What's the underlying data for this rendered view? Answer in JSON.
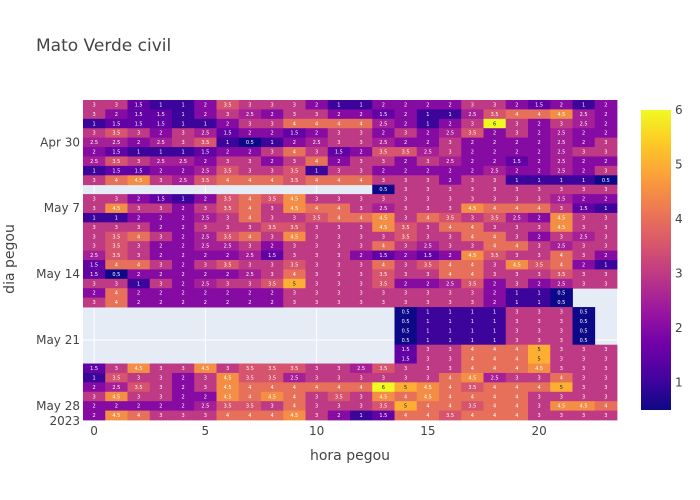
{
  "chart_data": {
    "type": "heatmap",
    "title": "Mato Verde civil",
    "xlabel": "hora pegou",
    "ylabel": "dia pegou",
    "x": [
      0,
      1,
      2,
      3,
      4,
      5,
      6,
      7,
      8,
      9,
      10,
      11,
      12,
      13,
      14,
      15,
      16,
      17,
      18,
      19,
      20,
      21,
      22,
      23
    ],
    "xlim": [
      -0.5,
      23.5
    ],
    "x_ticks": [
      0,
      5,
      10,
      15,
      20
    ],
    "x_tick_labels": [
      "0",
      "5",
      "10",
      "15",
      "20"
    ],
    "y_rows_start": "Apr 26",
    "y_tick_labels": [
      "Apr 30",
      "May 7",
      "May 14",
      "May 21",
      "May 28",
      "2023"
    ],
    "y_tick_rows": [
      4,
      11,
      18,
      25,
      32
    ],
    "colorscale": [
      "#0d0887",
      "#46039f",
      "#7201a8",
      "#9c179e",
      "#bd3786",
      "#d8576b",
      "#ed7953",
      "#fb9f3a",
      "#fdca26",
      "#f0f921"
    ],
    "zlim": [
      0.5,
      6
    ],
    "colorbar_ticks": [
      1,
      2,
      3,
      4,
      5,
      6
    ],
    "colorbar_tick_labels": [
      "1",
      "2",
      "3",
      "4",
      "5",
      "6"
    ],
    "grid": true,
    "z_rows": [
      "3 3 1.5 1 1 2 3.5 3 3 3 2 1 1 2 2 2 2 3 3 2 1.5 2 1 2",
      "3 2 1.5 1.5 1 2 3 2.5 2 3 3 2 2 1.5 2 1 1 2.5 3.5 4 4 4.5 2.5 2",
      "1 1.5 1.5 1.5 1 1 2 3 3 4 4 4 4 2.5 2 1 2 3 6 3 2 3 2.5 2",
      "3 3.5 3 2 3 2.5 1.5 2 2 1.5 2 3 3 2 3 2 2.5 3.5 2 3 2 2.5 2 2",
      "2.5 2.5 2 2.5 3 3.5 1 0.5 1 2 2.5 3 3 2.5 2 2 3 2 2 2 2 2.5 2 3",
      "2 1.5 1 1 1 1.5 2 2 3 4 3 1.5 2 3.5 3.5 2.5 3 2 2 2 2 2.5 3 3",
      "2.5 3.5 3 2.5 2.5 2 3 3 2 3 4 2 3 3 2 3 2.5 2 2 1.5 2 2.5 2 2",
      "1 1.5 1.5 2 2 2.5 3.5 3 3 3.5 1 3 3 2 2 2 2 2 2.5 2 2 2.5 2 3",
      "3 4 4.5 3 2.5 3.5 4 4 4 3.5 4 4 4 3 3 3 2 3 3 1 1 1 1 0.5",
      "-,-,-,-,-,-,-,-,-,-,-,-,-,0.5,3,3,3,3,3,3,3,3,3,3",
      "3 3 2 1.5 1 2 3.5 4 3.5 4.5 3 3 3 3 3 3 3 3 3 3 3 2.5 2 2",
      "3 4.5 3 3 2 3 3.5 4 3 4.5 4 4 3 2.5 3 3 3 4.5 4 4 4 3 1.5 1",
      "1 1 2 2 2 2.5 3 4 3 3 3.5 4 4 4.5 3 4 3.5 3 3.5 2.5 2 4.5 3 3",
      "3 3 3 2 2 3 3 3 3.5 3.5 3 3 3 4.5 3.5 3 4 4 3 3 3 4.5 3 3",
      "3 3.5 4 3 2 2.5 3.5 4 3 4.5 3 3 3 3 3.5 3 3 4 4 3 2 3 2.5 3",
      "3 3.5 3 2 2 2.5 2.5 3 2 3 3 3 3 4 3 2.5 3 3 4 4 3 2.5 3 3",
      "2.5 3.5 3 2 2 2 2 2.5 1.5 3 3 3 2 1.5 2 1.5 2 4.5 3.5 3 3 4 3 2",
      "1.5 4 4 3 2 3 3.5 3 3 3.5 3 3 3 4 3 3.5 4 4 3 4.5 3.5 4 2 1",
      "1.5 0.5 2 2 2 2 2 2.5 3 4 3 3 3 3.5 3 3 4 4 3 3 3 3.5 3 3",
      "3 3 1 3 2 2.5 3 3 3.5 5 3 3 3 3.5 2 2 2.5 3.5 2 3 2 2.5 3 3",
      "2 4 2 2 2 2 2 2 2 3 3 3 3 3 3 3 3 3 2 1 1 0.5 -,-",
      "3 4 2 2 2 2 2 2 2 3 3 3 3 3 3 3 3 3 2 1 1 0.5 -,-",
      "-,-,-,-,-,-,-,-,-,-,-,-,-,-,0.5,1,1,1,1,3,3,3,0.5,-",
      "-,-,-,-,-,-,-,-,-,-,-,-,-,-,0.5,1,1,1,1,3,3,3,0.5,-",
      "-,-,-,-,-,-,-,-,-,-,-,-,-,-,0.5,1,1,1,1,3,3,3,0.5,-",
      "-,-,-,-,-,-,-,-,-,-,-,-,-,-,0.5,1,1,1,1,3,3,3,0.5,-",
      "-,-,-,-,-,-,-,-,-,-,-,-,-,-,1.5,3,3,4,4,4,5,3,3,3",
      "-,-,-,-,-,-,-,-,-,-,-,-,-,-,1.5,3,3,4,4,4,5,3,3,3",
      "1.5 3 4.5 3 3 4.5 3 3.5 3.5 3.5 3 3 2.5 3.5 3 3 3 4 4 4 4.5 3 3 3",
      "1 3.5 3 3 2 3 4.5 3.5 3.5 2.5 3 3 3 3 3 3 4 4.5 2.5 3 3 4 3 3",
      "2 2.5 3.5 3 2 3 4.5 4 4 4 4 4 4 6 5 4.5 4 3.5 4 4 4 5 3 3",
      "3 4.5 3 3 2 2 4.5 4 4.5 4 3 3.5 3 4.5 4 4.5 4 4 4 4 3 3 3 3",
      "2 2 2 2 2 2.5 3.5 3.5 3 4 3 3 3 3.5 5 4 4 3.5 4 4 3 4.5 4.5 4",
      "2 4.5 4 3 3 3 4 4 4 4.5 3 2 1 1.5 4 4 3.5 4 4 4 3 3 3 3"
    ]
  }
}
